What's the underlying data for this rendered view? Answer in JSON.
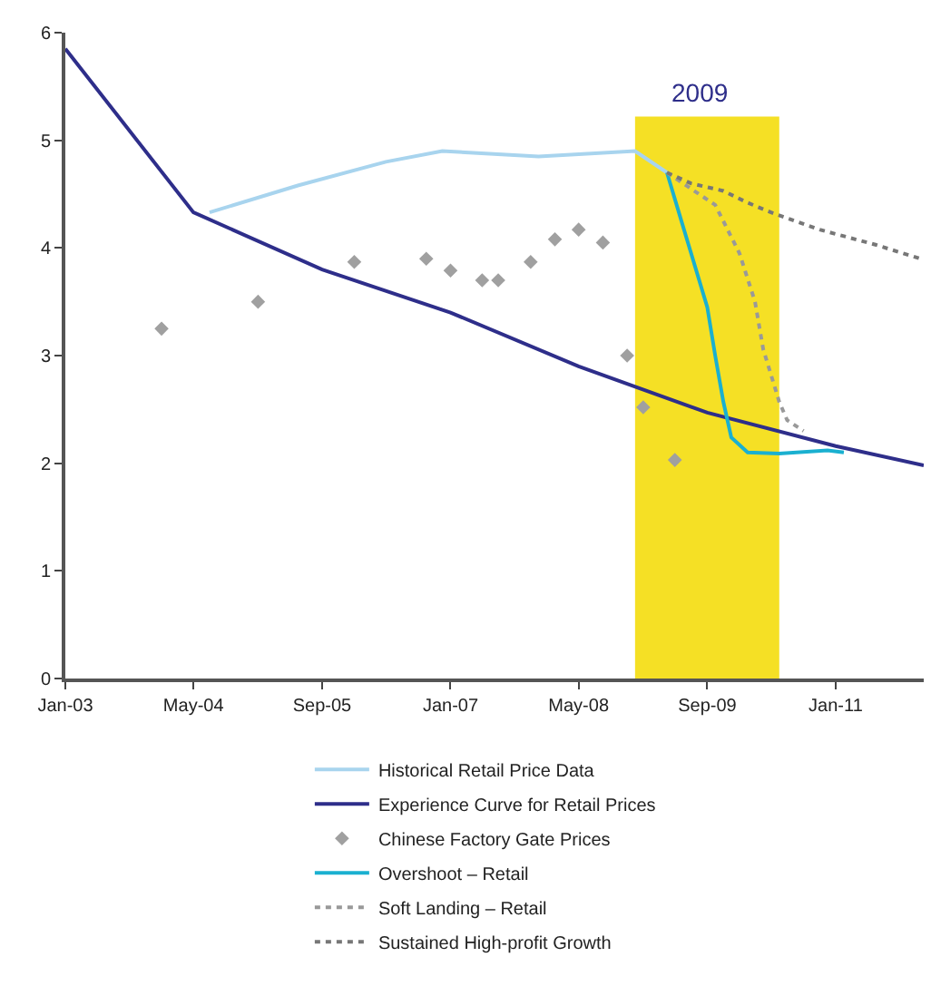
{
  "chart_data": {
    "type": "line",
    "xlim": [
      "2003-01",
      "2011-12"
    ],
    "xticks": [
      {
        "value": "2003-01",
        "label": "Jan-03"
      },
      {
        "value": "2004-05",
        "label": "May-04"
      },
      {
        "value": "2005-09",
        "label": "Sep-05"
      },
      {
        "value": "2007-01",
        "label": "Jan-07"
      },
      {
        "value": "2008-05",
        "label": "May-08"
      },
      {
        "value": "2009-09",
        "label": "Sep-09"
      },
      {
        "value": "2011-01",
        "label": "Jan-11"
      }
    ],
    "ylim": [
      0,
      6
    ],
    "yticks": [
      0,
      1,
      2,
      3,
      4,
      5,
      6
    ],
    "grid": false,
    "legend": "bottom",
    "bands": [
      {
        "axis": "x",
        "from": "2008-12",
        "to": "2010-06",
        "label": "2009",
        "color": "#f5e025"
      }
    ],
    "series": [
      {
        "name": "Historical Retail Price Data",
        "color": "#a8d4ee",
        "line_style": "solid",
        "marker": "none",
        "x": [
          "2004-07",
          "2005-06",
          "2006-05",
          "2006-12",
          "2007-12",
          "2008-12",
          "2009-04"
        ],
        "values": [
          4.33,
          4.58,
          4.8,
          4.9,
          4.85,
          4.9,
          4.7
        ]
      },
      {
        "name": "Experience Curve for Retail Prices",
        "color": "#2e2e8a",
        "line_style": "solid",
        "marker": "none",
        "x": [
          "2003-01",
          "2004-05",
          "2005-09",
          "2007-01",
          "2008-05",
          "2009-09",
          "2011-01",
          "2011-12"
        ],
        "values": [
          5.85,
          4.33,
          3.8,
          3.4,
          2.9,
          2.47,
          2.16,
          1.98
        ]
      },
      {
        "name": "Chinese Factory Gate Prices",
        "type": "scatter",
        "color": "#a0a0a0",
        "marker": "diamond",
        "x": [
          "2004-01",
          "2005-01",
          "2006-01",
          "2006-10",
          "2007-01",
          "2007-05",
          "2007-07",
          "2007-11",
          "2008-02",
          "2008-05",
          "2008-08",
          "2008-11",
          "2009-01",
          "2009-05"
        ],
        "values": [
          3.25,
          3.5,
          3.87,
          3.9,
          3.79,
          3.7,
          3.7,
          3.87,
          4.08,
          4.17,
          4.05,
          3.0,
          2.52,
          2.03
        ]
      },
      {
        "name": "Overshoot – Retail",
        "color": "#1ab0d0",
        "line_style": "solid",
        "marker": "none",
        "x": [
          "2009-04",
          "2009-06",
          "2009-09",
          "2009-10",
          "2009-11",
          "2009-12",
          "2010-02",
          "2010-06",
          "2010-12",
          "2011-02"
        ],
        "values": [
          4.7,
          4.2,
          3.45,
          3.0,
          2.57,
          2.24,
          2.1,
          2.09,
          2.12,
          2.1
        ]
      },
      {
        "name": "Soft Landing – Retail",
        "color": "#999999",
        "line_style": "dotted",
        "marker": "none",
        "x": [
          "2009-04",
          "2009-10",
          "2010-01",
          "2010-03",
          "2010-04",
          "2010-06",
          "2010-07",
          "2010-09"
        ],
        "values": [
          4.7,
          4.4,
          3.95,
          3.5,
          3.06,
          2.57,
          2.4,
          2.3
        ]
      },
      {
        "name": "Sustained High-profit Growth",
        "color": "#777777",
        "line_style": "dotted",
        "marker": "none",
        "x": [
          "2009-04",
          "2009-07",
          "2009-11",
          "2010-02",
          "2010-05",
          "2010-08",
          "2010-11",
          "2011-06",
          "2011-12"
        ],
        "values": [
          4.7,
          4.6,
          4.53,
          4.42,
          4.33,
          4.25,
          4.17,
          4.03,
          3.89
        ]
      }
    ]
  }
}
